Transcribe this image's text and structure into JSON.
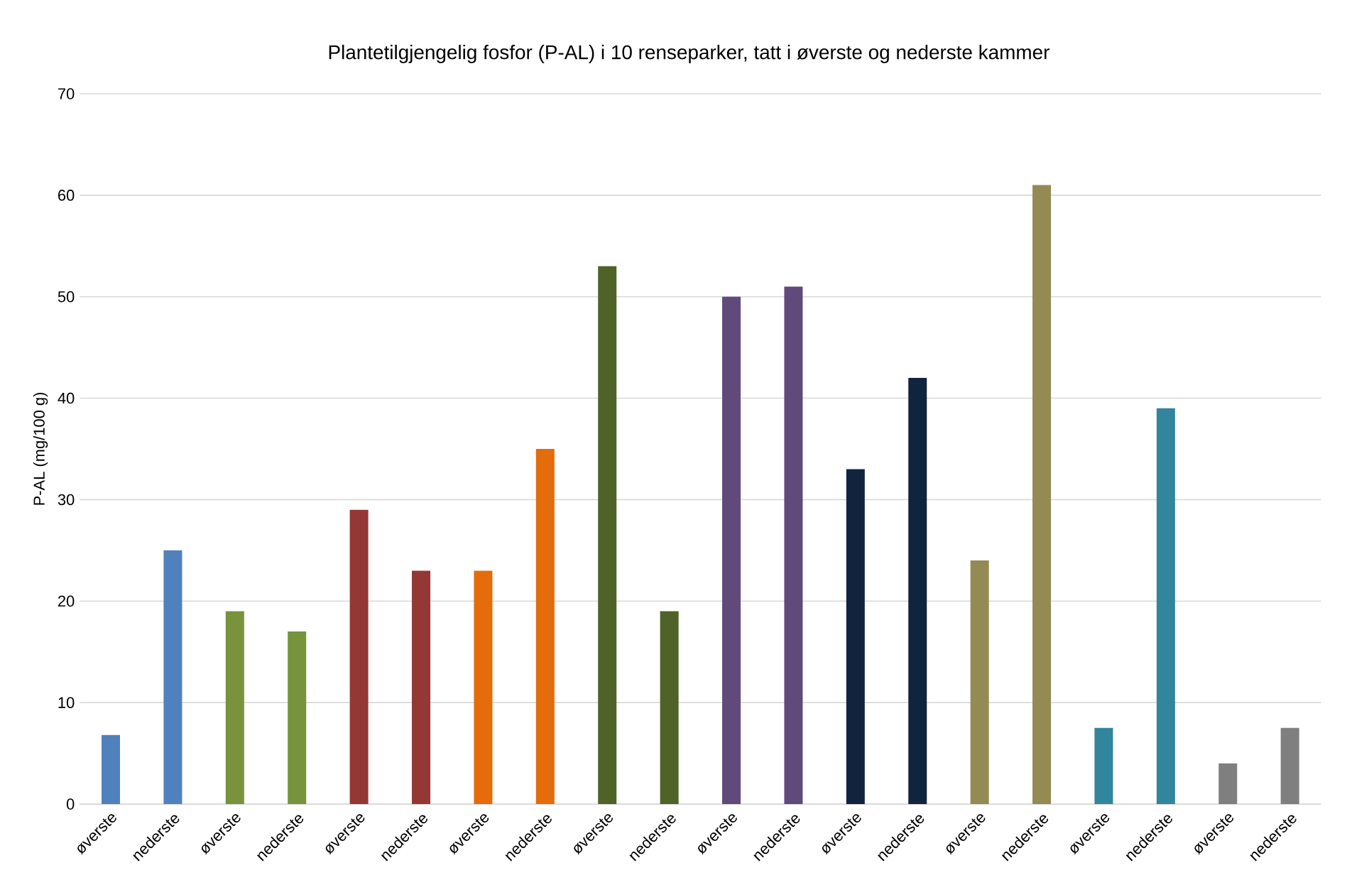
{
  "chart_data": {
    "type": "bar",
    "title": "Plantetilgjengelig fosfor (P-AL) i 10 renseparker, tatt i øverste og nederste kammer",
    "ylabel": "P-AL (mg/100 g)",
    "categories": [
      "øverste",
      "nederste",
      "øverste",
      "nederste",
      "øverste",
      "nederste",
      "øverste",
      "nederste",
      "øverste",
      "nederste",
      "øverste",
      "nederste",
      "øverste",
      "nederste",
      "øverste",
      "nederste",
      "øverste",
      "nederste",
      "øverste",
      "nederste"
    ],
    "values": [
      6.8,
      25,
      19,
      17,
      29,
      23,
      23,
      35,
      53,
      19,
      50,
      51,
      33,
      42,
      24,
      61,
      7.5,
      39,
      4,
      7.5
    ],
    "colors": [
      "#4f81bd",
      "#4f81bd",
      "#77933c",
      "#77933c",
      "#953735",
      "#953735",
      "#e46c0a",
      "#e46c0a",
      "#4f6228",
      "#4f6228",
      "#604a7b",
      "#604a7b",
      "#10243e",
      "#10243e",
      "#948a54",
      "#948a54",
      "#31859c",
      "#31859c",
      "#7f7f7f",
      "#7f7f7f"
    ],
    "ylim": [
      0,
      70
    ],
    "yticks": [
      0,
      10,
      20,
      30,
      40,
      50,
      60,
      70
    ],
    "grid": "y"
  }
}
